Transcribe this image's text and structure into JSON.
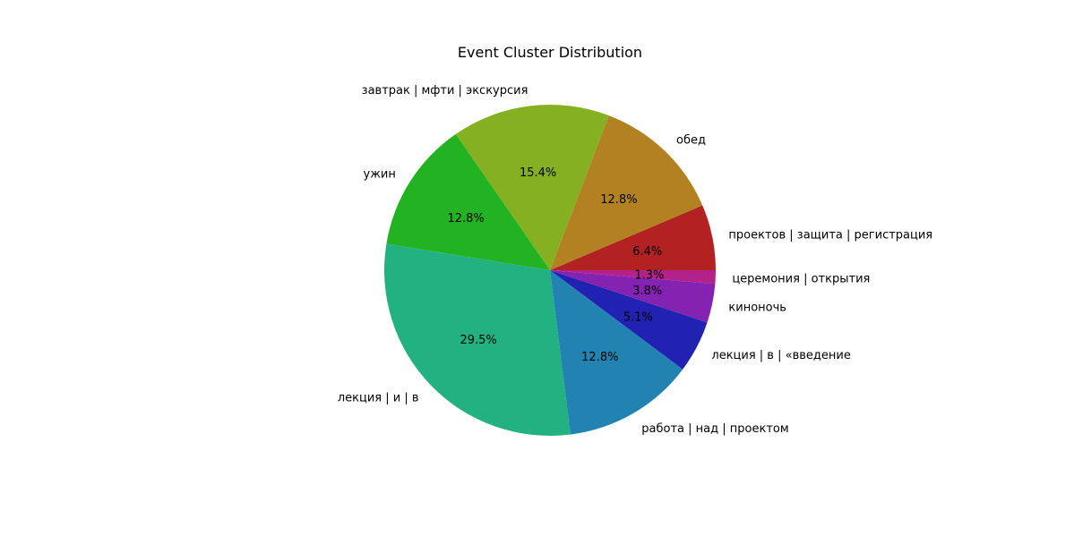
{
  "chart_data": {
    "type": "pie",
    "title": "Event Cluster Distribution",
    "start_angle_deg": 0,
    "direction": "counterclockwise",
    "slices": [
      {
        "label": "проектов | защита | регистрация",
        "value": 6.4,
        "pct_label": "6.4%",
        "color": "#b22222"
      },
      {
        "label": "обед",
        "value": 12.8,
        "pct_label": "12.8%",
        "color": "#b28222"
      },
      {
        "label": "завтрак | мфти | экскурсия",
        "value": 15.4,
        "pct_label": "15.4%",
        "color": "#84b022"
      },
      {
        "label": "ужин",
        "value": 12.8,
        "pct_label": "12.8%",
        "color": "#22b222"
      },
      {
        "label": "лекция | и | в",
        "value": 29.5,
        "pct_label": "29.5%",
        "color": "#22b282"
      },
      {
        "label": "работа | над | проектом",
        "value": 12.8,
        "pct_label": "12.8%",
        "color": "#2283b2"
      },
      {
        "label": "лекция | в | «введение",
        "value": 5.1,
        "pct_label": "5.1%",
        "color": "#2222b2"
      },
      {
        "label": "киноночь",
        "value": 3.8,
        "pct_label": "3.8%",
        "color": "#8422b2"
      },
      {
        "label": "церемония | открытия",
        "value": 1.3,
        "pct_label": "1.3%",
        "color": "#b2228a"
      }
    ]
  }
}
